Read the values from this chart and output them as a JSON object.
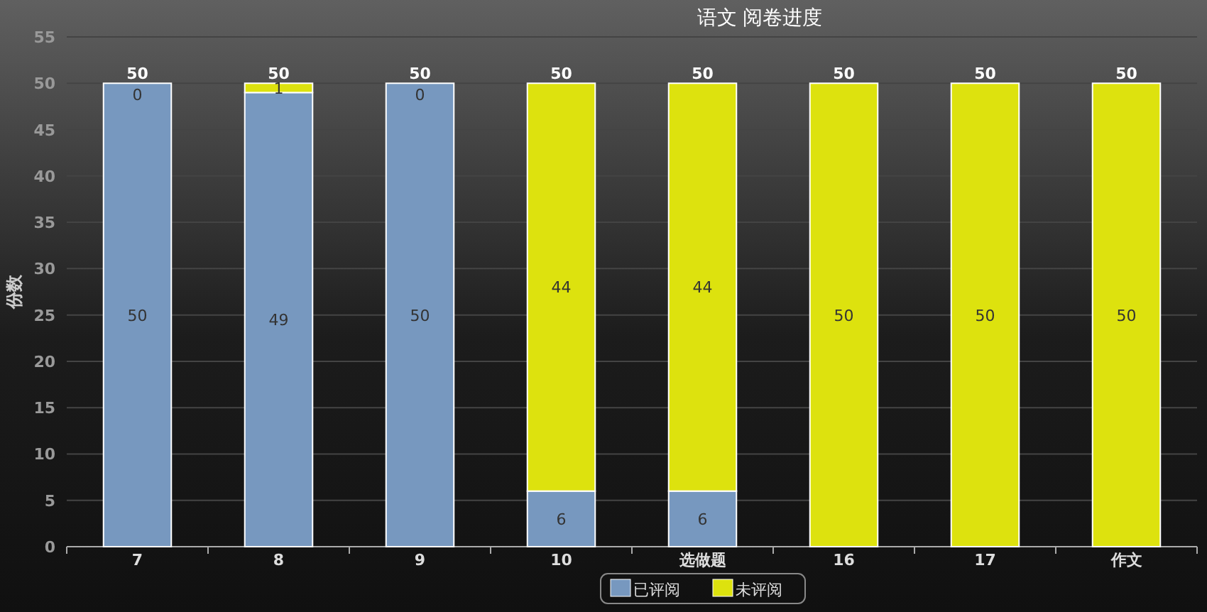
{
  "chart_data": {
    "type": "bar",
    "title": "语文 阅卷进度",
    "ylabel": "份数",
    "stacked": true,
    "categories": [
      "7",
      "8",
      "9",
      "10",
      "选做题",
      "16",
      "17",
      "作文"
    ],
    "series": [
      {
        "name": "已评阅",
        "color": "#7798bf",
        "values": [
          50,
          49,
          50,
          6,
          6,
          0,
          0,
          0
        ],
        "value_labels": [
          "50",
          "49",
          "50",
          "6",
          "6",
          null,
          null,
          null
        ]
      },
      {
        "name": "未评阅",
        "color": "#dde20e",
        "values": [
          0,
          1,
          0,
          44,
          44,
          50,
          50,
          50
        ],
        "value_labels": [
          "0",
          "1",
          "0",
          "44",
          "44",
          "50",
          "50",
          "50"
        ]
      }
    ],
    "totals": [
      "50",
      "50",
      "50",
      "50",
      "50",
      "50",
      "50",
      "50"
    ],
    "ylim": [
      0,
      55
    ],
    "yticks": [
      0,
      5,
      10,
      15,
      20,
      25,
      30,
      35,
      40,
      45,
      50,
      55
    ],
    "grid": "y",
    "legend": "bottom"
  }
}
